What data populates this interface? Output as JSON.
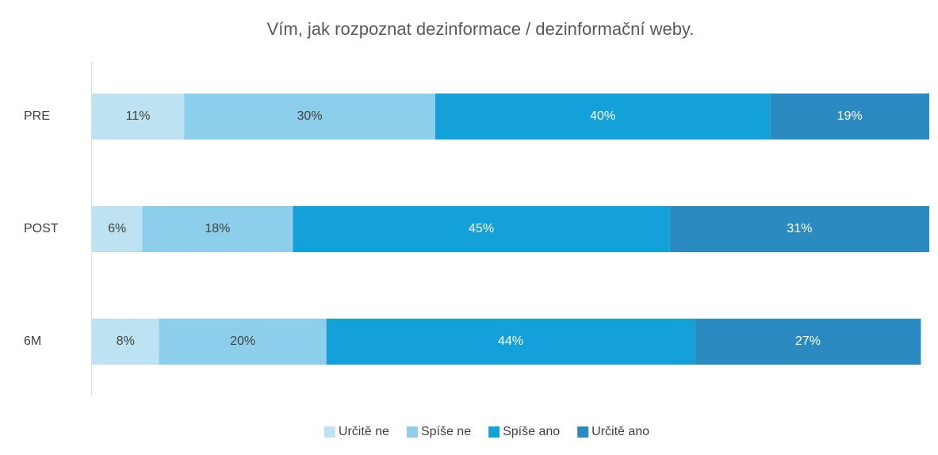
{
  "chart_data": {
    "type": "stacked-bar-horizontal",
    "title": "Vím, jak rozpoznat dezinformace / dezinformační weby.",
    "categories": [
      "PRE",
      "POST",
      "6M"
    ],
    "series": [
      {
        "name": "Určitě ne",
        "color": "#bde3f2",
        "values": [
          11,
          6,
          8
        ],
        "value_labels": [
          "11%",
          "6%",
          "8%"
        ]
      },
      {
        "name": "Spíše ne",
        "color": "#8dcfea",
        "values": [
          30,
          18,
          20
        ],
        "value_labels": [
          "30%",
          "18%",
          "20%"
        ]
      },
      {
        "name": "Spíše ano",
        "color": "#14a0d8",
        "values": [
          40,
          45,
          44
        ],
        "value_labels": [
          "40%",
          "45%",
          "44%"
        ]
      },
      {
        "name": "Určitě ano",
        "color": "#2b8bc1",
        "values": [
          19,
          31,
          27
        ],
        "value_labels": [
          "19%",
          "31%",
          "27%"
        ]
      }
    ],
    "xlim": [
      0,
      100
    ],
    "legend": "bottom"
  }
}
